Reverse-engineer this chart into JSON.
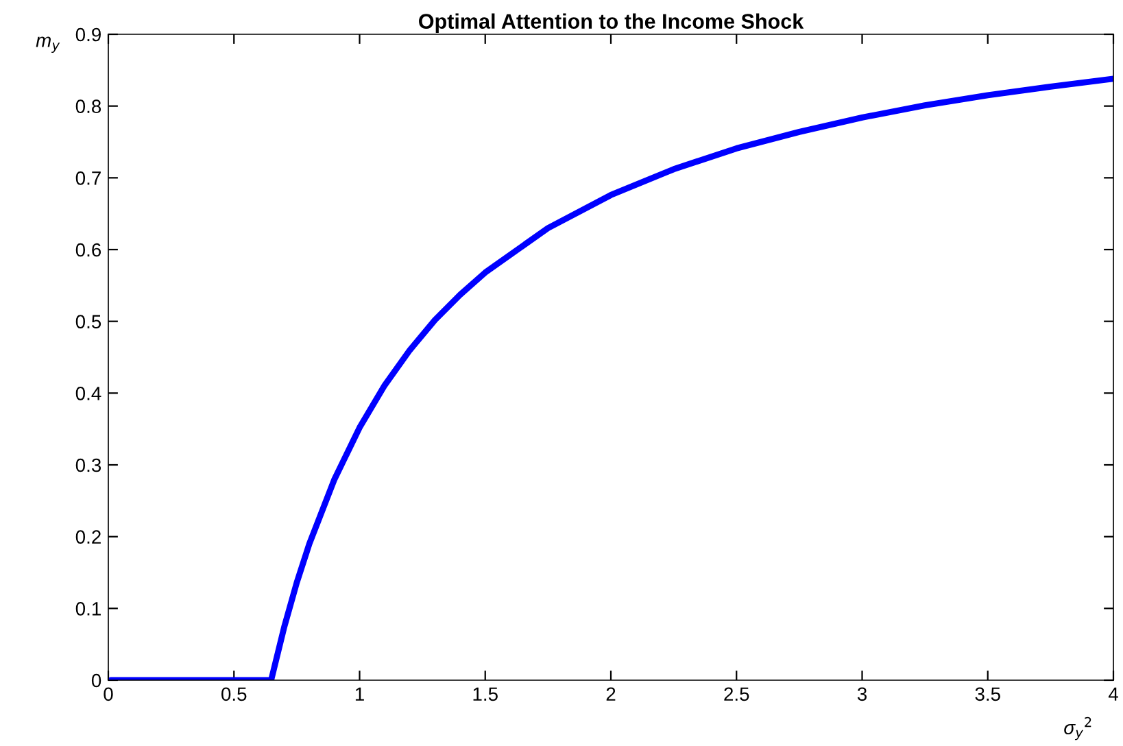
{
  "chart_data": {
    "type": "line",
    "title": "Optimal Attention to the Income Shock",
    "xlabel": "σ$_{y}$$^{2}$",
    "ylabel": "m$_{y}$",
    "series": [
      {
        "color": "#0000ff",
        "x": [
          0.01,
          0.648,
          0.7,
          0.75,
          0.8,
          0.9,
          1.0,
          1.1,
          1.2,
          1.3,
          1.4,
          1.5,
          1.75,
          2.0,
          2.25,
          2.5,
          2.75,
          3.0,
          3.25,
          3.5,
          3.75,
          4.0
        ],
        "values": [
          0,
          0,
          0.074,
          0.136,
          0.19,
          0.28,
          0.352,
          0.411,
          0.46,
          0.502,
          0.537,
          0.568,
          0.63,
          0.676,
          0.712,
          0.741,
          0.764,
          0.784,
          0.801,
          0.815,
          0.827,
          0.838
        ]
      }
    ],
    "xlim": [
      0,
      4
    ],
    "xticks": [
      0,
      0.5,
      1,
      1.5,
      2,
      2.5,
      3,
      3.5,
      4
    ],
    "ylim": [
      0,
      0.9
    ],
    "yticks": [
      0,
      0.1,
      0.2,
      0.3,
      0.4,
      0.5,
      0.6,
      0.7,
      0.8,
      0.9
    ],
    "grid": false,
    "line_style": "solid",
    "marker": "none"
  }
}
